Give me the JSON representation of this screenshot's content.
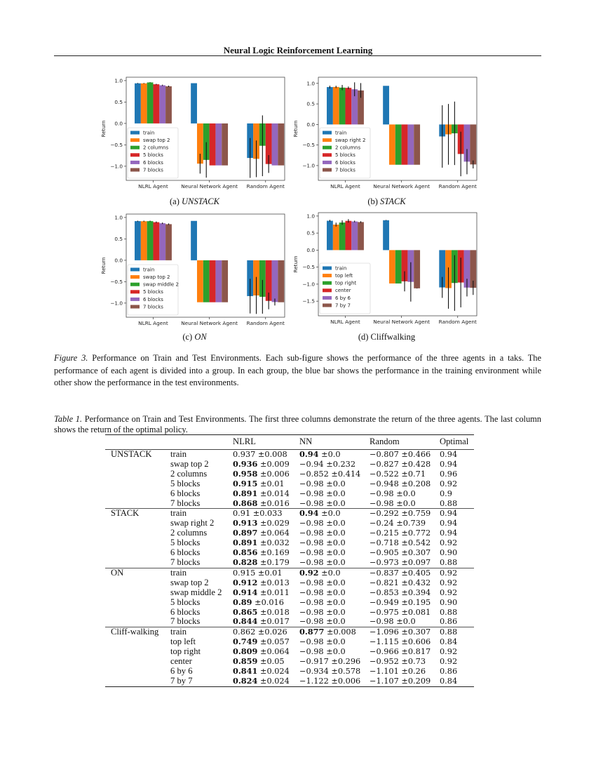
{
  "header": {
    "running_title": "Neural Logic Reinforcement Learning"
  },
  "figure": {
    "caption_label": "Figure 3.",
    "caption_text": "Performance on Train and Test Environments. Each sub-figure shows the performance of the three agents in a taks. The performance of each agent is divided into a group. In each group, the blue bar shows the performance in the training environment while other show the performance in the test environments."
  },
  "chart_data": [
    {
      "type": "bar",
      "subcaption_label": "(a)",
      "subcaption_name": "UNSTACK",
      "italic": true,
      "ylabel": "Return",
      "xlabel": "",
      "categories": [
        "NLRL Agent",
        "Neural Network Agent",
        "Random Agent"
      ],
      "ylim": [
        -1.33,
        1.08
      ],
      "yticks": [
        1.0,
        0.5,
        0.0,
        -0.5,
        -1.0
      ],
      "ytick_labels": [
        "1.0",
        "0.5",
        "0.0",
        "−0.5",
        "−1.0"
      ],
      "grid": false,
      "legend": "lower-left",
      "series": [
        {
          "name": "train",
          "values": [
            0.937,
            0.94,
            -0.807
          ],
          "errors": [
            0.008,
            0.0,
            0.466
          ]
        },
        {
          "name": "swap top 2",
          "values": [
            0.936,
            -0.94,
            -0.827
          ],
          "errors": [
            0.009,
            0.232,
            0.428
          ]
        },
        {
          "name": "2 columns",
          "values": [
            0.958,
            -0.852,
            -0.522
          ],
          "errors": [
            0.006,
            0.414,
            0.71
          ]
        },
        {
          "name": "5 blocks",
          "values": [
            0.915,
            -0.98,
            -0.948
          ],
          "errors": [
            0.01,
            0.0,
            0.208
          ]
        },
        {
          "name": "6 blocks",
          "values": [
            0.891,
            -0.98,
            -0.98
          ],
          "errors": [
            0.014,
            0.0,
            0.0
          ]
        },
        {
          "name": "7 blocks",
          "values": [
            0.868,
            -0.98,
            -0.98
          ],
          "errors": [
            0.016,
            0.0,
            0.0
          ]
        }
      ]
    },
    {
      "type": "bar",
      "subcaption_label": "(b)",
      "subcaption_name": "STACK",
      "italic": true,
      "ylabel": "Return",
      "xlabel": "",
      "categories": [
        "NLRL Agent",
        "Neural Network Agent",
        "Random Agent"
      ],
      "ylim": [
        -1.36,
        1.15
      ],
      "yticks": [
        1.0,
        0.5,
        0.0,
        -0.5,
        -1.0
      ],
      "ytick_labels": [
        "1.0",
        "0.5",
        "0.0",
        "−0.5",
        "−1.0"
      ],
      "grid": false,
      "legend": "lower-left",
      "series": [
        {
          "name": "train",
          "values": [
            0.91,
            0.94,
            -0.292
          ],
          "errors": [
            0.033,
            0.0,
            0.759
          ]
        },
        {
          "name": "swap right 2",
          "values": [
            0.913,
            -0.98,
            -0.24
          ],
          "errors": [
            0.029,
            0.0,
            0.739
          ]
        },
        {
          "name": "2 columns",
          "values": [
            0.897,
            -0.98,
            -0.215
          ],
          "errors": [
            0.064,
            0.0,
            0.772
          ]
        },
        {
          "name": "5 blocks",
          "values": [
            0.891,
            -0.98,
            -0.718
          ],
          "errors": [
            0.032,
            0.0,
            0.542
          ]
        },
        {
          "name": "6 blocks",
          "values": [
            0.856,
            -0.98,
            -0.905
          ],
          "errors": [
            0.169,
            0.0,
            0.307
          ]
        },
        {
          "name": "7 blocks",
          "values": [
            0.828,
            -0.98,
            -0.973
          ],
          "errors": [
            0.179,
            0.0,
            0.097
          ]
        }
      ]
    },
    {
      "type": "bar",
      "subcaption_label": "(c)",
      "subcaption_name": "ON",
      "italic": true,
      "ylabel": "Return",
      "xlabel": "",
      "categories": [
        "NLRL Agent",
        "Neural Network Agent",
        "Random Agent"
      ],
      "ylim": [
        -1.33,
        1.08
      ],
      "yticks": [
        1.0,
        0.5,
        0.0,
        -0.5,
        -1.0
      ],
      "ytick_labels": [
        "1.0",
        "0.5",
        "0.0",
        "−0.5",
        "−1.0"
      ],
      "grid": false,
      "legend": "lower-left",
      "series": [
        {
          "name": "train",
          "values": [
            0.915,
            0.92,
            -0.837
          ],
          "errors": [
            0.01,
            0.0,
            0.405
          ]
        },
        {
          "name": "swap top 2",
          "values": [
            0.912,
            -0.98,
            -0.821
          ],
          "errors": [
            0.013,
            0.0,
            0.432
          ]
        },
        {
          "name": "swap middle 2",
          "values": [
            0.914,
            -0.98,
            -0.853
          ],
          "errors": [
            0.011,
            0.0,
            0.394
          ]
        },
        {
          "name": "5 blocks",
          "values": [
            0.89,
            -0.98,
            -0.949
          ],
          "errors": [
            0.016,
            0.0,
            0.195
          ]
        },
        {
          "name": "6 blocks",
          "values": [
            0.865,
            -0.98,
            -0.975
          ],
          "errors": [
            0.018,
            0.0,
            0.081
          ]
        },
        {
          "name": "7 blocks",
          "values": [
            0.844,
            -0.98,
            -0.98
          ],
          "errors": [
            0.017,
            0.0,
            0.0
          ]
        }
      ]
    },
    {
      "type": "bar",
      "subcaption_label": "(d)",
      "subcaption_name": "Cliffwalking",
      "italic": false,
      "ylabel": "Return",
      "xlabel": "",
      "categories": [
        "NLRL Agent",
        "Neural Network Agent",
        "Random Agent"
      ],
      "ylim": [
        -1.93,
        1.1
      ],
      "yticks": [
        1.0,
        0.5,
        0.0,
        -0.5,
        -1.0,
        -1.5
      ],
      "ytick_labels": [
        "1.0",
        "0.5",
        "0.0",
        "−0.5",
        "−1.0",
        "−1.5"
      ],
      "grid": false,
      "legend": "lower-left",
      "series": [
        {
          "name": "train",
          "values": [
            0.862,
            0.877,
            -1.096
          ],
          "errors": [
            0.026,
            0.008,
            0.307
          ]
        },
        {
          "name": "top left",
          "values": [
            0.749,
            -0.98,
            -1.115
          ],
          "errors": [
            0.057,
            0.0,
            0.606
          ]
        },
        {
          "name": "top right",
          "values": [
            0.809,
            -0.98,
            -0.966
          ],
          "errors": [
            0.064,
            0.0,
            0.817
          ]
        },
        {
          "name": "center",
          "values": [
            0.859,
            -0.917,
            -0.952
          ],
          "errors": [
            0.05,
            0.296,
            0.73
          ]
        },
        {
          "name": "6 by 6",
          "values": [
            0.841,
            -0.934,
            -1.101
          ],
          "errors": [
            0.024,
            0.578,
            0.26
          ]
        },
        {
          "name": "7 by 7",
          "values": [
            0.824,
            -1.122,
            -1.107
          ],
          "errors": [
            0.024,
            0.006,
            0.209
          ]
        }
      ]
    }
  ],
  "series_colors": [
    "#1f77b4",
    "#ff7f0e",
    "#2ca02c",
    "#d62728",
    "#9467bd",
    "#8c564b"
  ],
  "table": {
    "caption_label": "Table 1.",
    "caption_text": "Performance on Train and Test Environments. The first three columns demonstrate the return of the three agents. The last column shows the return of the optimal policy.",
    "columns": [
      "",
      "",
      "NLRL",
      "NN",
      "Random",
      "Optimal"
    ],
    "groups": [
      {
        "name": "UNSTACK",
        "rows": [
          {
            "env": "train",
            "nlrl": {
              "m": "0.937",
              "s": "0.008",
              "b": false
            },
            "nn": {
              "m": "0.94",
              "s": "0.0",
              "b": true
            },
            "random": {
              "m": "−0.807",
              "s": "0.466",
              "b": false
            },
            "optimal": "0.94"
          },
          {
            "env": "swap top 2",
            "nlrl": {
              "m": "0.936",
              "s": "0.009",
              "b": true
            },
            "nn": {
              "m": "−0.94",
              "s": "0.232",
              "b": false
            },
            "random": {
              "m": "−0.827",
              "s": "0.428",
              "b": false
            },
            "optimal": "0.94"
          },
          {
            "env": "2 columns",
            "nlrl": {
              "m": "0.958",
              "s": "0.006",
              "b": true
            },
            "nn": {
              "m": "−0.852",
              "s": "0.414",
              "b": false
            },
            "random": {
              "m": "−0.522",
              "s": "0.71",
              "b": false
            },
            "optimal": "0.96"
          },
          {
            "env": "5 blocks",
            "nlrl": {
              "m": "0.915",
              "s": "0.01",
              "b": true
            },
            "nn": {
              "m": "−0.98",
              "s": "0.0",
              "b": false
            },
            "random": {
              "m": "−0.948",
              "s": "0.208",
              "b": false
            },
            "optimal": "0.92"
          },
          {
            "env": "6 blocks",
            "nlrl": {
              "m": "0.891",
              "s": "0.014",
              "b": true
            },
            "nn": {
              "m": "−0.98",
              "s": "0.0",
              "b": false
            },
            "random": {
              "m": "−0.98",
              "s": "0.0",
              "b": false
            },
            "optimal": "0.9"
          },
          {
            "env": "7 blocks",
            "nlrl": {
              "m": "0.868",
              "s": "0.016",
              "b": true
            },
            "nn": {
              "m": "−0.98",
              "s": "0.0",
              "b": false
            },
            "random": {
              "m": "−0.98",
              "s": "0.0",
              "b": false
            },
            "optimal": "0.88"
          }
        ]
      },
      {
        "name": "STACK",
        "rows": [
          {
            "env": "train",
            "nlrl": {
              "m": "0.91",
              "s": "0.033",
              "b": false
            },
            "nn": {
              "m": "0.94",
              "s": "0.0",
              "b": true
            },
            "random": {
              "m": "−0.292",
              "s": "0.759",
              "b": false
            },
            "optimal": "0.94"
          },
          {
            "env": "swap right 2",
            "nlrl": {
              "m": "0.913",
              "s": "0.029",
              "b": true
            },
            "nn": {
              "m": "−0.98",
              "s": "0.0",
              "b": false
            },
            "random": {
              "m": "−0.24",
              "s": "0.739",
              "b": false
            },
            "optimal": "0.94"
          },
          {
            "env": "2 columns",
            "nlrl": {
              "m": "0.897",
              "s": "0.064",
              "b": true
            },
            "nn": {
              "m": "−0.98",
              "s": "0.0",
              "b": false
            },
            "random": {
              "m": "−0.215",
              "s": "0.772",
              "b": false
            },
            "optimal": "0.94"
          },
          {
            "env": "5 blocks",
            "nlrl": {
              "m": "0.891",
              "s": "0.032",
              "b": true
            },
            "nn": {
              "m": "−0.98",
              "s": "0.0",
              "b": false
            },
            "random": {
              "m": "−0.718",
              "s": "0.542",
              "b": false
            },
            "optimal": "0.92"
          },
          {
            "env": "6 blocks",
            "nlrl": {
              "m": "0.856",
              "s": "0.169",
              "b": true
            },
            "nn": {
              "m": "−0.98",
              "s": "0.0",
              "b": false
            },
            "random": {
              "m": "−0.905",
              "s": "0.307",
              "b": false
            },
            "optimal": "0.90"
          },
          {
            "env": "7 blocks",
            "nlrl": {
              "m": "0.828",
              "s": "0.179",
              "b": true
            },
            "nn": {
              "m": "−0.98",
              "s": "0.0",
              "b": false
            },
            "random": {
              "m": "−0.973",
              "s": "0.097",
              "b": false
            },
            "optimal": "0.88"
          }
        ]
      },
      {
        "name": "ON",
        "rows": [
          {
            "env": "train",
            "nlrl": {
              "m": "0.915",
              "s": "0.01",
              "b": false
            },
            "nn": {
              "m": "0.92",
              "s": "0.0",
              "b": true
            },
            "random": {
              "m": "−0.837",
              "s": "0.405",
              "b": false
            },
            "optimal": "0.92"
          },
          {
            "env": "swap top 2",
            "nlrl": {
              "m": "0.912",
              "s": "0.013",
              "b": true
            },
            "nn": {
              "m": "−0.98",
              "s": "0.0",
              "b": false
            },
            "random": {
              "m": "−0.821",
              "s": "0.432",
              "b": false
            },
            "optimal": "0.92"
          },
          {
            "env": "swap middle 2",
            "nlrl": {
              "m": "0.914",
              "s": "0.011",
              "b": true
            },
            "nn": {
              "m": "−0.98",
              "s": "0.0",
              "b": false
            },
            "random": {
              "m": "−0.853",
              "s": "0.394",
              "b": false
            },
            "optimal": "0.92"
          },
          {
            "env": "5 blocks",
            "nlrl": {
              "m": "0.89",
              "s": "0.016",
              "b": true
            },
            "nn": {
              "m": "−0.98",
              "s": "0.0",
              "b": false
            },
            "random": {
              "m": "−0.949",
              "s": "0.195",
              "b": false
            },
            "optimal": "0.90"
          },
          {
            "env": "6 blocks",
            "nlrl": {
              "m": "0.865",
              "s": "0.018",
              "b": true
            },
            "nn": {
              "m": "−0.98",
              "s": "0.0",
              "b": false
            },
            "random": {
              "m": "−0.975",
              "s": "0.081",
              "b": false
            },
            "optimal": "0.88"
          },
          {
            "env": "7 blocks",
            "nlrl": {
              "m": "0.844",
              "s": "0.017",
              "b": true
            },
            "nn": {
              "m": "−0.98",
              "s": "0.0",
              "b": false
            },
            "random": {
              "m": "−0.98",
              "s": "0.0",
              "b": false
            },
            "optimal": "0.86"
          }
        ]
      },
      {
        "name": "Cliff-walking",
        "rows": [
          {
            "env": "train",
            "nlrl": {
              "m": "0.862",
              "s": "0.026",
              "b": false
            },
            "nn": {
              "m": "0.877",
              "s": "0.008",
              "b": true
            },
            "random": {
              "m": "−1.096",
              "s": "0.307",
              "b": false
            },
            "optimal": "0.88"
          },
          {
            "env": "top left",
            "nlrl": {
              "m": "0.749",
              "s": "0.057",
              "b": true
            },
            "nn": {
              "m": "−0.98",
              "s": "0.0",
              "b": false
            },
            "random": {
              "m": "−1.115",
              "s": "0.606",
              "b": false
            },
            "optimal": "0.84"
          },
          {
            "env": "top right",
            "nlrl": {
              "m": "0.809",
              "s": "0.064",
              "b": true
            },
            "nn": {
              "m": "−0.98",
              "s": "0.0",
              "b": false
            },
            "random": {
              "m": "−0.966",
              "s": "0.817",
              "b": false
            },
            "optimal": "0.92"
          },
          {
            "env": "center",
            "nlrl": {
              "m": "0.859",
              "s": "0.05",
              "b": true
            },
            "nn": {
              "m": "−0.917",
              "s": "0.296",
              "b": false
            },
            "random": {
              "m": "−0.952",
              "s": "0.73",
              "b": false
            },
            "optimal": "0.92"
          },
          {
            "env": "6 by 6",
            "nlrl": {
              "m": "0.841",
              "s": "0.024",
              "b": true
            },
            "nn": {
              "m": "−0.934",
              "s": "0.578",
              "b": false
            },
            "random": {
              "m": "−1.101",
              "s": "0.26",
              "b": false
            },
            "optimal": "0.86"
          },
          {
            "env": "7 by 7",
            "nlrl": {
              "m": "0.824",
              "s": "0.024",
              "b": true
            },
            "nn": {
              "m": "−1.122",
              "s": "0.006",
              "b": false
            },
            "random": {
              "m": "−1.107",
              "s": "0.209",
              "b": false
            },
            "optimal": "0.84"
          }
        ]
      }
    ]
  }
}
